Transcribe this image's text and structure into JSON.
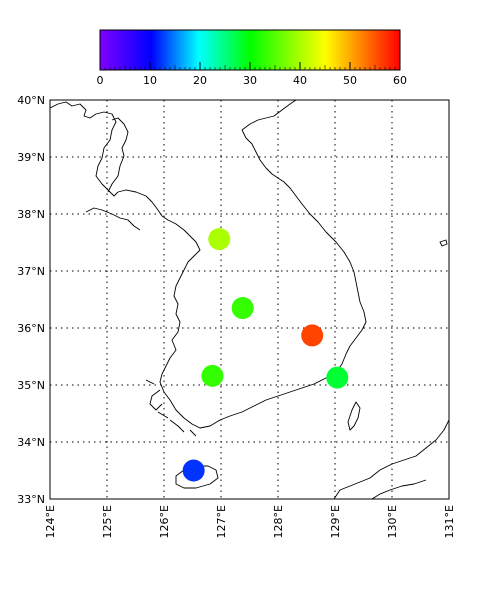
{
  "colorbar": {
    "min": 0,
    "max": 60,
    "tick_labels": [
      "0",
      "10",
      "20",
      "30",
      "40",
      "50",
      "60"
    ],
    "tick_values": [
      0,
      10,
      20,
      30,
      40,
      50,
      60
    ],
    "colormap": "gist_rainbow"
  },
  "map": {
    "lon_range": [
      124,
      131
    ],
    "lat_range": [
      33,
      40
    ],
    "lat_labels": [
      "33°N",
      "34°N",
      "35°N",
      "36°N",
      "37°N",
      "38°N",
      "39°N",
      "40°N"
    ],
    "lat_values": [
      33,
      34,
      35,
      36,
      37,
      38,
      39,
      40
    ],
    "lon_labels": [
      "124°E",
      "125°E",
      "126°E",
      "127°E",
      "128°E",
      "129°E",
      "130°E",
      "131°E"
    ],
    "lon_values": [
      124,
      125,
      126,
      127,
      128,
      129,
      130,
      131
    ],
    "grid": "dotted"
  },
  "chart_data": {
    "type": "scatter",
    "points": [
      {
        "lon": 126.97,
        "lat": 37.56,
        "value": 40
      },
      {
        "lon": 127.38,
        "lat": 36.35,
        "value": 33
      },
      {
        "lon": 128.6,
        "lat": 35.87,
        "value": 56
      },
      {
        "lon": 126.85,
        "lat": 35.16,
        "value": 33
      },
      {
        "lon": 129.04,
        "lat": 35.13,
        "value": 28
      },
      {
        "lon": 126.52,
        "lat": 33.5,
        "value": 12
      }
    ]
  }
}
